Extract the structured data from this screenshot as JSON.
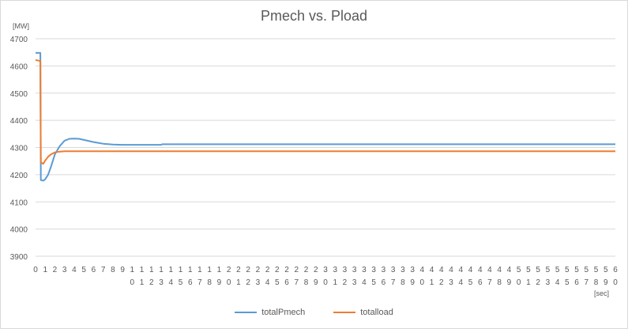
{
  "chart_data": {
    "type": "line",
    "title": "Pmech vs. Pload",
    "y_unit_label": "[MW]",
    "x_unit_label": "[sec]",
    "ylim": [
      3900,
      4700
    ],
    "yticks": [
      3900,
      4000,
      4100,
      4200,
      4300,
      4400,
      4500,
      4600,
      4700
    ],
    "xlim": [
      0,
      60
    ],
    "xticks": [
      0,
      1,
      2,
      3,
      4,
      5,
      6,
      7,
      8,
      9,
      10,
      11,
      12,
      13,
      14,
      15,
      16,
      17,
      18,
      19,
      20,
      21,
      22,
      23,
      24,
      25,
      26,
      27,
      28,
      29,
      30,
      31,
      32,
      33,
      34,
      35,
      36,
      37,
      38,
      39,
      40,
      41,
      42,
      43,
      44,
      45,
      46,
      47,
      48,
      49,
      50,
      51,
      52,
      53,
      54,
      55,
      56,
      57,
      58,
      59,
      60
    ],
    "grid": "horizontal",
    "legend_position": "bottom",
    "series": [
      {
        "name": "totalPmech",
        "color": "#5b9bd5",
        "x": [
          0,
          0.5,
          0.55,
          0.8,
          1.0,
          1.3,
          1.6,
          2.0,
          2.5,
          3.0,
          3.5,
          4.0,
          4.5,
          5.0,
          6.0,
          7.0,
          8.0,
          9.0,
          10.0,
          12.0,
          13.0,
          13.1,
          20.0,
          30.0,
          40.0,
          50.0,
          60.0
        ],
        "y": [
          4648,
          4648,
          4180,
          4178,
          4183,
          4200,
          4230,
          4275,
          4305,
          4325,
          4332,
          4333,
          4332,
          4328,
          4320,
          4314,
          4311,
          4310,
          4310,
          4310,
          4310,
          4312,
          4312,
          4312,
          4312,
          4312,
          4312
        ]
      },
      {
        "name": "totalload",
        "color": "#ed7d31",
        "x": [
          0,
          0.5,
          0.55,
          0.8,
          1.0,
          1.3,
          1.6,
          2.0,
          2.5,
          3.0,
          4.0,
          60.0
        ],
        "y": [
          4622,
          4618,
          4245,
          4240,
          4252,
          4266,
          4275,
          4282,
          4285,
          4286,
          4286,
          4286
        ]
      }
    ]
  }
}
